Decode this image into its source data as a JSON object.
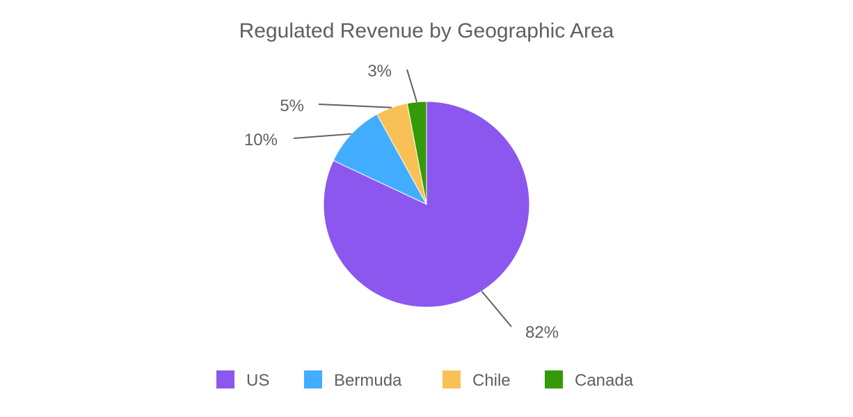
{
  "chart_data": {
    "type": "pie",
    "title": "Regulated Revenue by Geographic Area",
    "categories": [
      "US",
      "Bermuda",
      "Chile",
      "Canada"
    ],
    "values": [
      82,
      10,
      5,
      3
    ],
    "labels": [
      "82%",
      "10%",
      "5%",
      "3%"
    ],
    "colors": [
      "#8b57ef",
      "#42adff",
      "#f9c155",
      "#349a09"
    ],
    "legend_position": "bottom",
    "start_angle": "top",
    "direction": "clockwise"
  }
}
